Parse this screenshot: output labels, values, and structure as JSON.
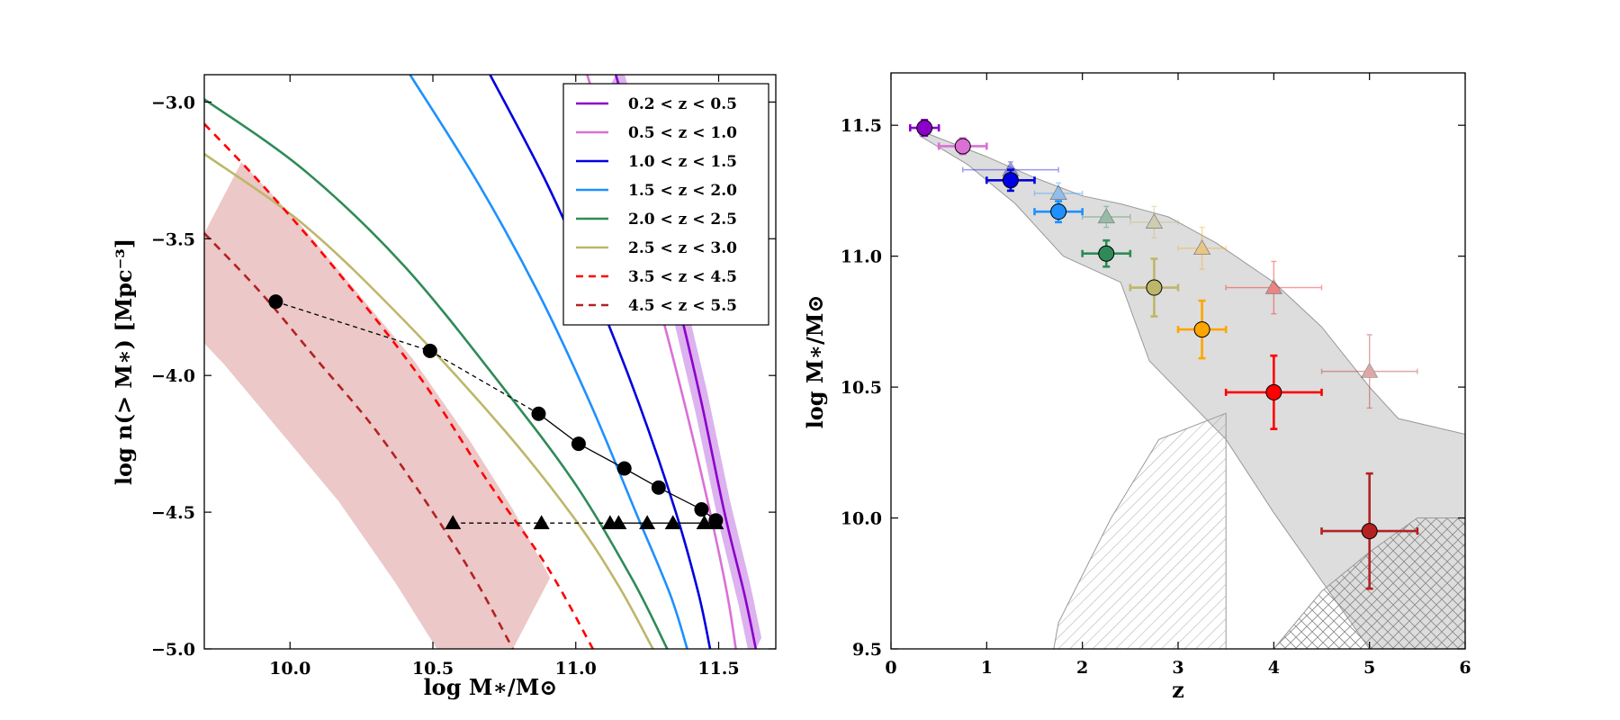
{
  "chart_data": [
    {
      "type": "line",
      "title": "",
      "xlabel": "log M∗/M⊙",
      "ylabel": "log n(> M∗) [Mpc⁻³]",
      "xlim": [
        9.7,
        11.7
      ],
      "ylim": [
        -5.0,
        -2.9
      ],
      "xticks": [
        10.0,
        10.5,
        11.0,
        11.5
      ],
      "xtick_labels": [
        "10.0",
        "10.5",
        "11.0",
        "11.5"
      ],
      "yticks": [
        -3.0,
        -3.5,
        -4.0,
        -4.5,
        -5.0
      ],
      "ytick_labels": [
        "−3.0",
        "−3.5",
        "−4.0",
        "−4.5",
        "−5.0"
      ],
      "legend_position": "top-right",
      "series": [
        {
          "name": "0.2 < z < 0.5",
          "color": "#8b00c9",
          "dash": "solid",
          "band": true,
          "points": [
            [
              11.14,
              -2.9
            ],
            [
              11.25,
              -3.3
            ],
            [
              11.35,
              -3.7
            ],
            [
              11.44,
              -4.1
            ],
            [
              11.52,
              -4.5
            ],
            [
              11.59,
              -4.8
            ],
            [
              11.63,
              -5.0
            ]
          ]
        },
        {
          "name": "0.5 < z < 1.0",
          "color": "#da70d6",
          "dash": "solid",
          "band": false,
          "points": [
            [
              11.04,
              -2.9
            ],
            [
              11.16,
              -3.3
            ],
            [
              11.28,
              -3.7
            ],
            [
              11.38,
              -4.1
            ],
            [
              11.47,
              -4.5
            ],
            [
              11.53,
              -4.8
            ],
            [
              11.56,
              -5.0
            ]
          ]
        },
        {
          "name": "1.0 < z < 1.5",
          "color": "#0000e0",
          "dash": "solid",
          "band": false,
          "points": [
            [
              10.7,
              -2.9
            ],
            [
              10.9,
              -3.3
            ],
            [
              11.07,
              -3.7
            ],
            [
              11.22,
              -4.1
            ],
            [
              11.35,
              -4.5
            ],
            [
              11.43,
              -4.8
            ],
            [
              11.47,
              -5.0
            ]
          ]
        },
        {
          "name": "1.5 < z < 2.0",
          "color": "#1e90ff",
          "dash": "solid",
          "band": false,
          "points": [
            [
              10.42,
              -2.9
            ],
            [
              10.66,
              -3.3
            ],
            [
              10.87,
              -3.7
            ],
            [
              11.05,
              -4.1
            ],
            [
              11.21,
              -4.5
            ],
            [
              11.33,
              -4.8
            ],
            [
              11.39,
              -5.0
            ]
          ]
        },
        {
          "name": "2.0 < z < 2.5",
          "color": "#2e8b57",
          "dash": "solid",
          "band": false,
          "points": [
            [
              9.7,
              -2.99
            ],
            [
              10.05,
              -3.25
            ],
            [
              10.4,
              -3.6
            ],
            [
              10.75,
              -4.05
            ],
            [
              11.0,
              -4.4
            ],
            [
              11.2,
              -4.75
            ],
            [
              11.32,
              -5.0
            ]
          ]
        },
        {
          "name": "2.5 < z < 3.0",
          "color": "#bdb76b",
          "dash": "solid",
          "band": false,
          "points": [
            [
              9.7,
              -3.19
            ],
            [
              10.05,
              -3.45
            ],
            [
              10.4,
              -3.8
            ],
            [
              10.75,
              -4.2
            ],
            [
              11.0,
              -4.53
            ],
            [
              11.15,
              -4.77
            ],
            [
              11.27,
              -5.0
            ]
          ]
        },
        {
          "name": "3.5 < z < 4.5",
          "color": "#ff0000",
          "dash": "dashed",
          "band": false,
          "points": [
            [
              9.7,
              -3.08
            ],
            [
              9.9,
              -3.3
            ],
            [
              10.15,
              -3.6
            ],
            [
              10.45,
              -4.0
            ],
            [
              10.7,
              -4.4
            ],
            [
              10.9,
              -4.7
            ],
            [
              11.06,
              -5.0
            ]
          ]
        },
        {
          "name": "4.5 < z < 5.5",
          "color": "#b22222",
          "dash": "dashed",
          "band": true,
          "points": [
            [
              9.7,
              -3.48
            ],
            [
              9.9,
              -3.7
            ],
            [
              10.1,
              -3.95
            ],
            [
              10.3,
              -4.2
            ],
            [
              10.5,
              -4.5
            ],
            [
              10.65,
              -4.75
            ],
            [
              10.78,
              -5.0
            ]
          ]
        }
      ],
      "markers_circles": {
        "x": [
          9.95,
          10.49,
          10.87,
          11.01,
          11.17,
          11.29,
          11.44,
          11.49
        ],
        "y": [
          -3.73,
          -3.91,
          -4.14,
          -4.25,
          -4.34,
          -4.41,
          -4.49,
          -4.53
        ]
      },
      "markers_triangles": {
        "x": [
          10.57,
          10.88,
          11.12,
          11.15,
          11.25,
          11.34,
          11.45,
          11.49
        ],
        "y": [
          -4.54,
          -4.54,
          -4.54,
          -4.54,
          -4.54,
          -4.54,
          -4.54,
          -4.54
        ]
      }
    },
    {
      "type": "scatter",
      "title": "",
      "xlabel": "z",
      "ylabel": "log M∗/M⊙",
      "xlim": [
        0,
        6
      ],
      "ylim": [
        9.5,
        11.7
      ],
      "xticks": [
        0,
        1,
        2,
        3,
        4,
        5,
        6
      ],
      "xtick_labels": [
        "0",
        "1",
        "2",
        "3",
        "4",
        "5",
        "6"
      ],
      "yticks": [
        9.5,
        10.0,
        10.5,
        11.0,
        11.5
      ],
      "ytick_labels": [
        "9.5",
        "10.0",
        "10.5",
        "11.0",
        "11.5"
      ],
      "circles": [
        {
          "z": 0.35,
          "y": 11.49,
          "xerr": 0.15,
          "yerr": 0.03,
          "color": "#8b00c9"
        },
        {
          "z": 0.75,
          "y": 11.42,
          "xerr": 0.25,
          "yerr": 0.03,
          "color": "#da70d6"
        },
        {
          "z": 1.25,
          "y": 11.29,
          "xerr": 0.25,
          "yerr": 0.04,
          "color": "#0000e0"
        },
        {
          "z": 1.75,
          "y": 11.17,
          "xerr": 0.25,
          "yerr": 0.04,
          "color": "#1e90ff"
        },
        {
          "z": 2.25,
          "y": 11.01,
          "xerr": 0.25,
          "yerr": 0.05,
          "color": "#2e8b57"
        },
        {
          "z": 2.75,
          "y": 10.88,
          "xerr": 0.25,
          "yerr": 0.11,
          "color": "#bdb76b"
        },
        {
          "z": 3.25,
          "y": 10.72,
          "xerr": 0.25,
          "yerr": 0.11,
          "color": "#ffa500"
        },
        {
          "z": 4.0,
          "y": 10.48,
          "xerr": 0.5,
          "yerr": 0.14,
          "color": "#ff0000"
        },
        {
          "z": 5.0,
          "y": 9.95,
          "xerr": 0.5,
          "yerr": 0.22,
          "color": "#b22222"
        }
      ],
      "triangles": [
        {
          "z": 1.25,
          "y": 11.33,
          "xerr": 0.5,
          "yerr": 0.03,
          "color": "#0000e0"
        },
        {
          "z": 1.75,
          "y": 11.24,
          "xerr": 0.25,
          "yerr": 0.04,
          "color": "#1e90ff"
        },
        {
          "z": 2.25,
          "y": 11.15,
          "xerr": 0.25,
          "yerr": 0.04,
          "color": "#2e8b57"
        },
        {
          "z": 2.75,
          "y": 11.13,
          "xerr": 0.25,
          "yerr": 0.06,
          "color": "#bdb76b"
        },
        {
          "z": 3.25,
          "y": 11.03,
          "xerr": 0.25,
          "yerr": 0.08,
          "color": "#ffa500"
        },
        {
          "z": 4.0,
          "y": 10.88,
          "xerr": 0.5,
          "yerr": 0.1,
          "color": "#ff0000"
        },
        {
          "z": 5.0,
          "y": 10.56,
          "xerr": 0.5,
          "yerr": 0.14,
          "color": "#b22222"
        }
      ],
      "shaded_region": [
        [
          0.3,
          11.48
        ],
        [
          1.0,
          11.38
        ],
        [
          1.5,
          11.3
        ],
        [
          2.0,
          11.23
        ],
        [
          2.4,
          11.2
        ],
        [
          2.9,
          11.15
        ],
        [
          3.4,
          11.05
        ],
        [
          4.0,
          10.9
        ],
        [
          4.5,
          10.73
        ],
        [
          5.0,
          10.5
        ],
        [
          5.3,
          10.38
        ],
        [
          6.0,
          10.32
        ],
        [
          6.0,
          9.5
        ],
        [
          5.0,
          9.5
        ],
        [
          4.0,
          10.02
        ],
        [
          3.5,
          10.3
        ],
        [
          2.7,
          10.6
        ],
        [
          2.4,
          10.9
        ],
        [
          1.8,
          11.0
        ],
        [
          1.3,
          11.2
        ],
        [
          0.8,
          11.35
        ],
        [
          0.3,
          11.46
        ]
      ],
      "hatched_regions": [
        [
          [
            1.7,
            9.5
          ],
          [
            1.75,
            9.6
          ],
          [
            2.3,
            10.0
          ],
          [
            2.8,
            10.3
          ],
          [
            3.5,
            10.4
          ],
          [
            3.5,
            9.5
          ]
        ],
        [
          [
            4.0,
            9.5
          ],
          [
            4.5,
            9.72
          ],
          [
            5.0,
            9.87
          ],
          [
            5.5,
            10.0
          ],
          [
            6.0,
            10.0
          ],
          [
            6.0,
            9.5
          ]
        ]
      ]
    }
  ]
}
